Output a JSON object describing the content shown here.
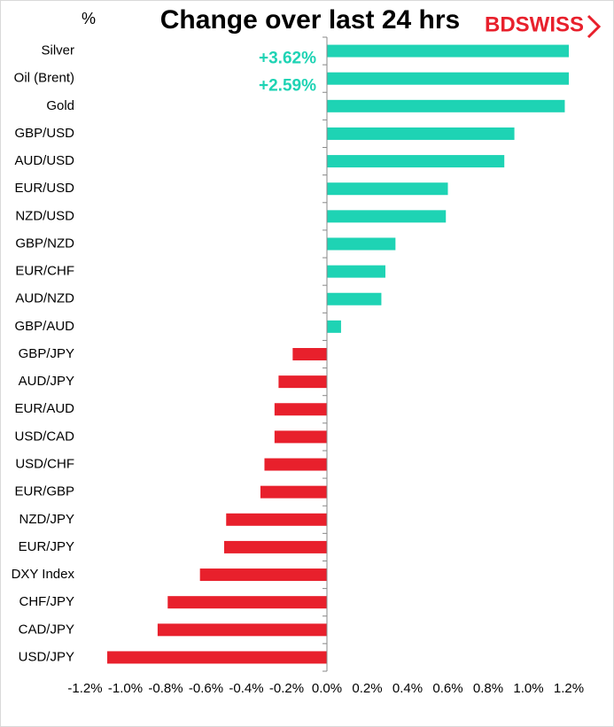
{
  "chart_data": {
    "type": "hbar",
    "title": "Change over last 24 hrs",
    "y_label": "%",
    "logo": "BDSWISS",
    "categories": [
      "Silver",
      "Oil (Brent)",
      "Gold",
      "GBP/USD",
      "AUD/USD",
      "EUR/USD",
      "NZD/USD",
      "GBP/NZD",
      "EUR/CHF",
      "AUD/NZD",
      "GBP/AUD",
      "GBP/JPY",
      "AUD/JPY",
      "EUR/AUD",
      "USD/CAD",
      "USD/CHF",
      "EUR/GBP",
      "NZD/JPY",
      "EUR/JPY",
      "DXY Index",
      "CHF/JPY",
      "CAD/JPY",
      "USD/JPY"
    ],
    "values": [
      3.62,
      2.59,
      1.18,
      0.93,
      0.88,
      0.6,
      0.59,
      0.34,
      0.29,
      0.27,
      0.07,
      -0.17,
      -0.24,
      -0.26,
      -0.26,
      -0.31,
      -0.33,
      -0.5,
      -0.51,
      -0.63,
      -0.79,
      -0.84,
      -1.09
    ],
    "value_labels": [
      "+3.62%",
      "+2.59%",
      null,
      null,
      null,
      null,
      null,
      null,
      null,
      null,
      null,
      null,
      null,
      null,
      null,
      null,
      null,
      null,
      null,
      null,
      null,
      null,
      null
    ],
    "positive_color": "#1ed3b4",
    "negative_color": "#e8202c",
    "xlim": [
      -1.2,
      1.2
    ],
    "xticks": [
      {
        "value": -1.2,
        "label": "-1.2%"
      },
      {
        "value": -1.0,
        "label": "-1.0%"
      },
      {
        "value": -0.8,
        "label": "-0.8%"
      },
      {
        "value": -0.6,
        "label": "-0.6%"
      },
      {
        "value": -0.4,
        "label": "-0.4%"
      },
      {
        "value": -0.2,
        "label": "-0.2%"
      },
      {
        "value": 0,
        "label": "0.0%"
      },
      {
        "value": 0.2,
        "label": "0.2%"
      },
      {
        "value": 0.4,
        "label": "0.4%"
      },
      {
        "value": 0.6,
        "label": "0.6%"
      },
      {
        "value": 0.8,
        "label": "0.8%"
      },
      {
        "value": 1.0,
        "label": "1.0%"
      },
      {
        "value": 1.2,
        "label": "1.2%"
      }
    ]
  }
}
